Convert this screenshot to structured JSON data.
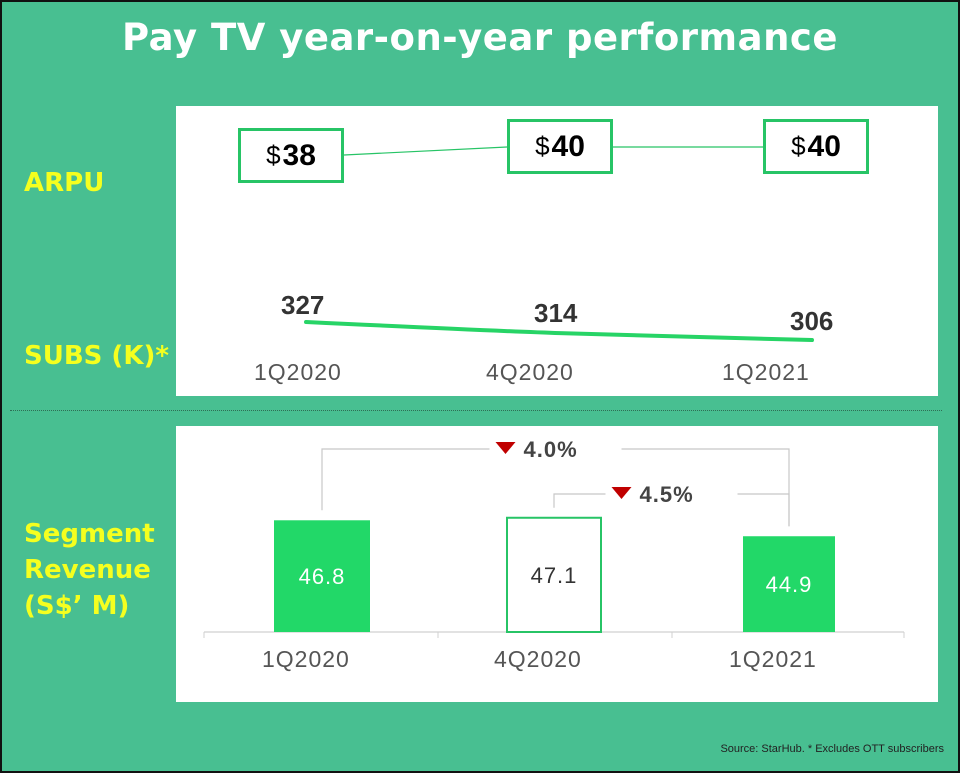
{
  "title": "Pay TV year-on-year performance",
  "labels": {
    "arpu": "ARPU",
    "subs": "SUBS (K)*",
    "revenue_line1": "Segment",
    "revenue_line2": "Revenue",
    "revenue_line3": "(S$’ M)"
  },
  "source": "Source: StarHub. * Excludes OTT subscribers",
  "colors": {
    "background": "#48bf91",
    "label": "#f5ff1f",
    "accent_green": "#27c466",
    "bar_fill": "#22d868",
    "decline_marker": "#c00000"
  },
  "chart_data": [
    {
      "type": "line",
      "name": "ARPU",
      "categories": [
        "1Q2020",
        "4Q2020",
        "1Q2021"
      ],
      "values": [
        38,
        40,
        40
      ],
      "value_labels": [
        "38",
        "40",
        "40"
      ],
      "currency": "$"
    },
    {
      "type": "line",
      "name": "SUBS (K)*",
      "categories": [
        "1Q2020",
        "4Q2020",
        "1Q2021"
      ],
      "values": [
        327,
        314,
        306
      ],
      "value_labels": [
        "327",
        "314",
        "306"
      ]
    },
    {
      "type": "bar",
      "name": "Segment Revenue (S$’ M)",
      "categories": [
        "1Q2020",
        "4Q2020",
        "1Q2021"
      ],
      "values": [
        46.8,
        47.1,
        44.9
      ],
      "value_labels": [
        "46.8",
        "47.1",
        "44.9"
      ],
      "bar_styles": [
        "filled",
        "outline",
        "filled"
      ],
      "annotations": [
        {
          "from": "1Q2020",
          "to": "1Q2021",
          "direction": "down",
          "label": "4.0%"
        },
        {
          "from": "4Q2020",
          "to": "1Q2021",
          "direction": "down",
          "label": "4.5%"
        }
      ]
    }
  ]
}
